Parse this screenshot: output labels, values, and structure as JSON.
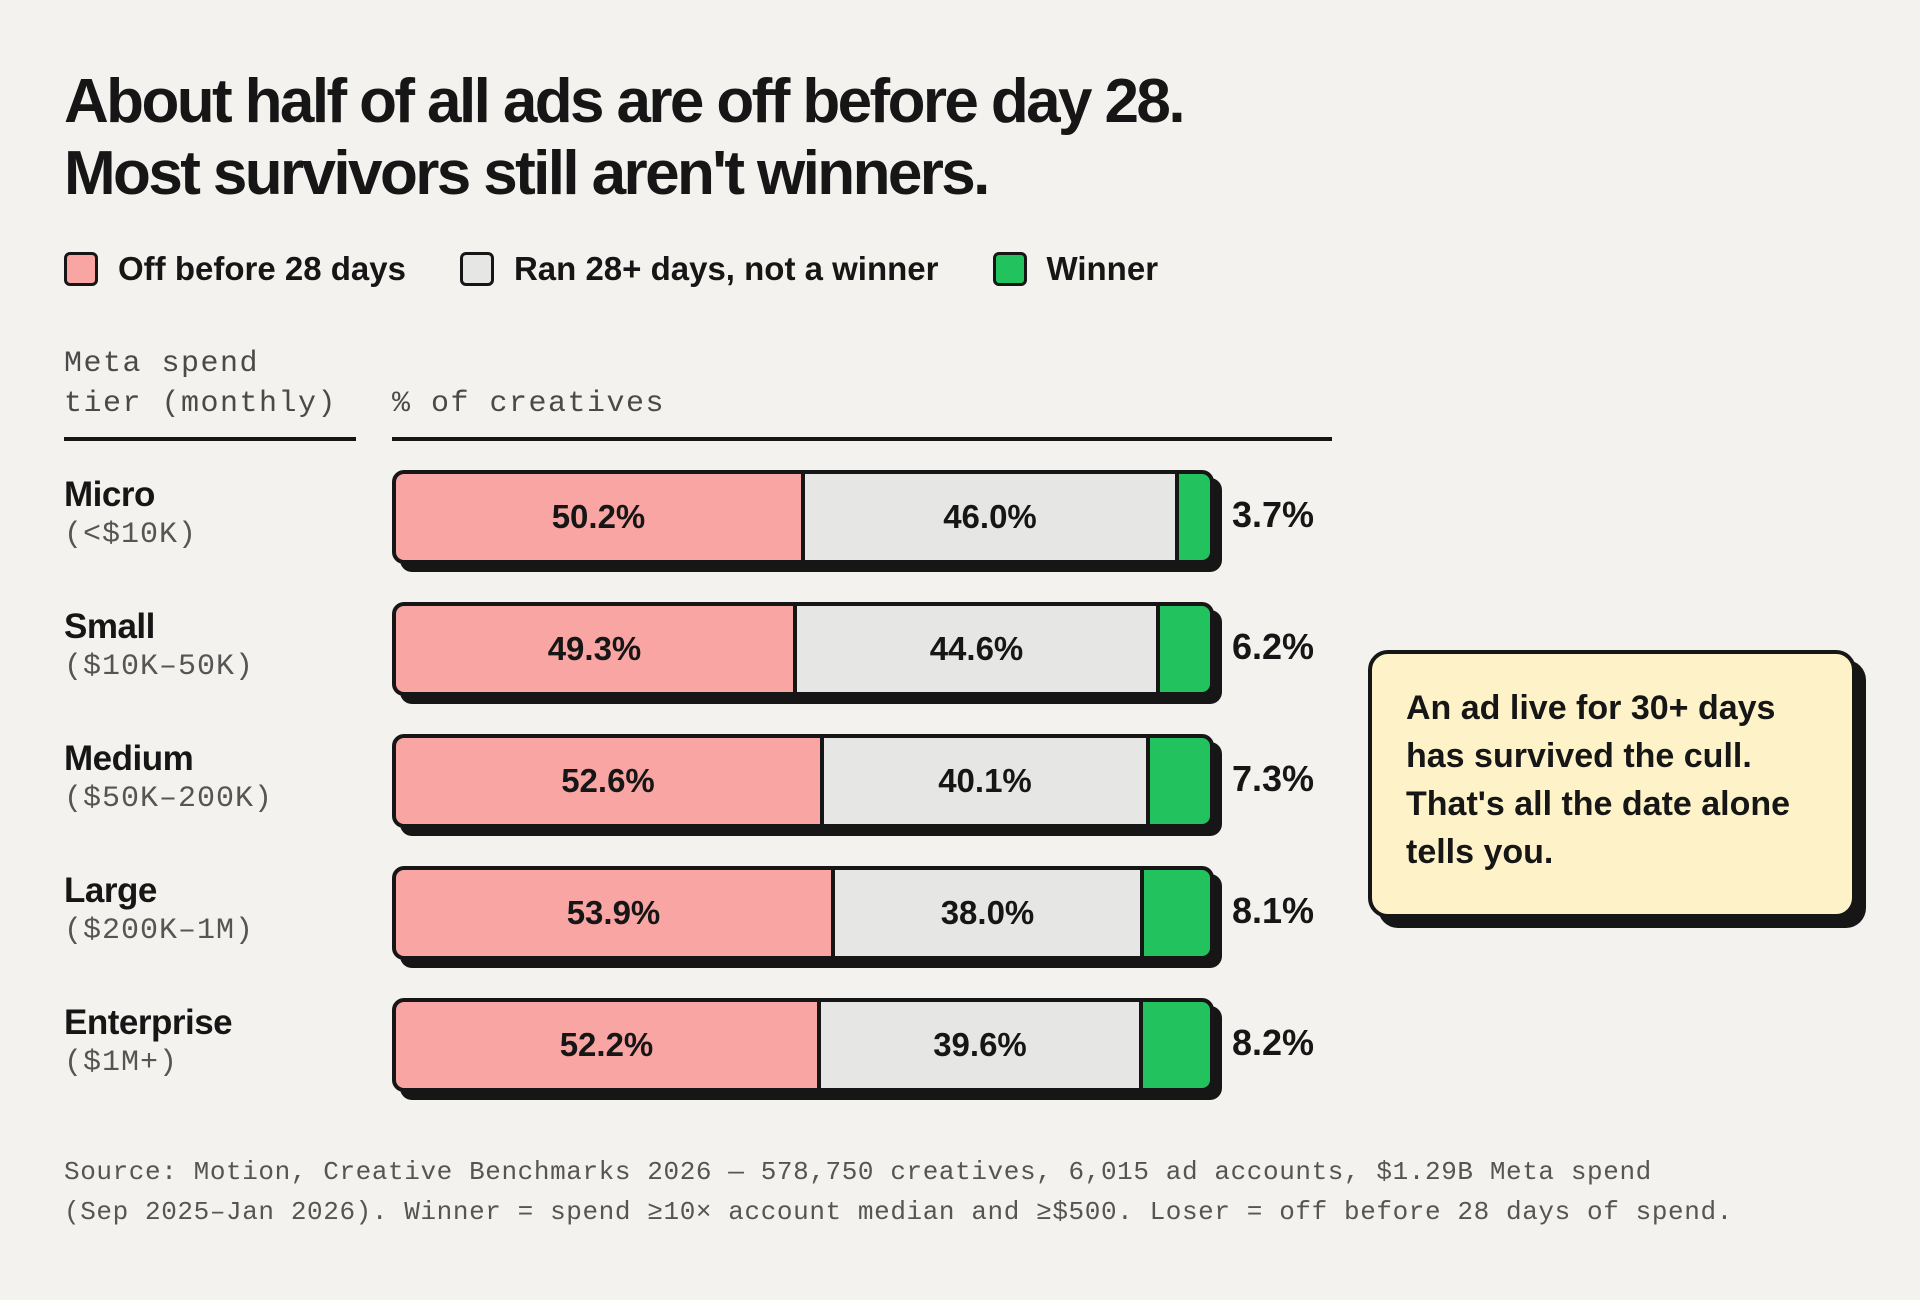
{
  "title": {
    "line1": "About half of all ads are off before day 28.",
    "line2": "Most survivors still aren't winners."
  },
  "legend": [
    {
      "label": "Off before 28 days",
      "color": "#f9a5a3"
    },
    {
      "label": "Ran 28+ days, not a winner",
      "color": "#e6e6e4"
    },
    {
      "label": "Winner",
      "color": "#22c35e"
    }
  ],
  "columns": {
    "tier_header": "Meta spend tier (monthly)",
    "value_header": "% of creatives"
  },
  "chart_data": {
    "type": "bar",
    "orientation": "horizontal",
    "stacked": true,
    "categories": [
      "Micro",
      "Small",
      "Medium",
      "Large",
      "Enterprise"
    ],
    "category_ranges": [
      "(<$10K)",
      "($10K–50K)",
      "($50K–200K)",
      "($200K–1M)",
      "($1M+)"
    ],
    "series": [
      {
        "name": "Off before 28 days",
        "values": [
          50.2,
          49.3,
          52.6,
          53.9,
          52.2
        ],
        "labels": [
          "50.2%",
          "49.3%",
          "52.6%",
          "53.9%",
          "52.2%"
        ],
        "color": "#f9a5a3"
      },
      {
        "name": "Ran 28+ days, not a winner",
        "values": [
          46.0,
          44.6,
          40.1,
          38.0,
          39.6
        ],
        "labels": [
          "46.0%",
          "44.6%",
          "40.1%",
          "38.0%",
          "39.6%"
        ],
        "color": "#e6e6e4"
      },
      {
        "name": "Winner",
        "values": [
          3.7,
          6.2,
          7.3,
          8.1,
          8.2
        ],
        "labels": [
          "3.7%",
          "6.2%",
          "7.3%",
          "8.1%",
          "8.2%"
        ],
        "color": "#22c35e"
      }
    ],
    "xlabel": "% of creatives",
    "ylabel": "Meta spend tier (monthly)",
    "xlim": [
      0,
      100
    ]
  },
  "callout": {
    "text": "An ad live for 30+ days has survived the cull. That's all the date alone tells you."
  },
  "source": {
    "line1": "Source: Motion, Creative Benchmarks 2026 — 578,750 creatives, 6,015 ad accounts, $1.29B Meta spend",
    "line2": "(Sep 2025–Jan 2026). Winner = spend ≥10× account median and ≥$500. Loser = off before 28 days of spend."
  }
}
